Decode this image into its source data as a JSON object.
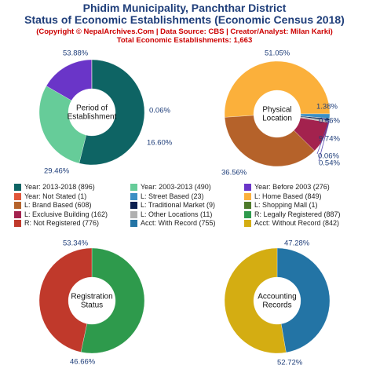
{
  "header": {
    "title_line1": "Phidim Municipality, Panchthar District",
    "title_line2": "Status of Economic Establishments (Economic Census 2018)",
    "copyright": "(Copyright © NepalArchives.Com | Data Source: CBS | Creator/Analyst: Milan Karki)",
    "total": "Total Economic Establishments: 1,663"
  },
  "chart_data": [
    {
      "type": "pie",
      "center_label": [
        "Period of",
        "Establishment"
      ],
      "categories": [
        "Year: 2013-2018",
        "Year: 2003-2013",
        "Year: Before 2003",
        "Year: Not Stated"
      ],
      "values": [
        896,
        490,
        276,
        1
      ],
      "percent_labels": [
        "53.88%",
        "29.46%",
        "16.60%",
        "0.06%"
      ],
      "colors": [
        "#0e6464",
        "#66cc99",
        "#6a35c8",
        "#e0563a"
      ]
    },
    {
      "type": "pie",
      "center_label": [
        "Physical",
        "Location"
      ],
      "categories": [
        "L: Home Based",
        "L: Brand Based",
        "L: Exclusive Building",
        "L: Other Locations",
        "L: Traditional Market",
        "L: Shopping Mall",
        "L: Street Based"
      ],
      "values": [
        849,
        608,
        162,
        11,
        9,
        1,
        23
      ],
      "percent_labels": [
        "51.05%",
        "36.56%",
        "9.74%",
        "0.66%",
        "0.54%",
        "0.06%",
        "1.38%"
      ],
      "colors": [
        "#fbb03b",
        "#b5622a",
        "#a3224e",
        "#b0b0b0",
        "#0b1f4f",
        "#4e7a2a",
        "#3b8fc4"
      ]
    },
    {
      "type": "pie",
      "center_label": [
        "Registration",
        "Status"
      ],
      "categories": [
        "R: Legally Registered",
        "R: Not Registered"
      ],
      "values": [
        887,
        776
      ],
      "percent_labels": [
        "53.34%",
        "46.66%"
      ],
      "colors": [
        "#2e9a4c",
        "#c0392b"
      ]
    },
    {
      "type": "pie",
      "center_label": [
        "Accounting",
        "Records"
      ],
      "categories": [
        "Acct: With Record",
        "Acct: Without Record"
      ],
      "values": [
        755,
        842
      ],
      "percent_labels": [
        "47.28%",
        "52.72%"
      ],
      "colors": [
        "#2374a5",
        "#d4ad12"
      ]
    }
  ],
  "legend": [
    {
      "label": "Year: 2013-2018 (896)",
      "color": "#0e6464"
    },
    {
      "label": "Year: 2003-2013 (490)",
      "color": "#66cc99"
    },
    {
      "label": "Year: Before 2003 (276)",
      "color": "#6a35c8"
    },
    {
      "label": "Year: Not Stated (1)",
      "color": "#e0563a"
    },
    {
      "label": "L: Street Based (23)",
      "color": "#3b8fc4"
    },
    {
      "label": "L: Home Based (849)",
      "color": "#fbb03b"
    },
    {
      "label": "L: Brand Based (608)",
      "color": "#b5622a"
    },
    {
      "label": "L: Traditional Market (9)",
      "color": "#0b1f4f"
    },
    {
      "label": "L: Shopping Mall (1)",
      "color": "#4e7a2a"
    },
    {
      "label": "L: Exclusive Building (162)",
      "color": "#a3224e"
    },
    {
      "label": "L: Other Locations (11)",
      "color": "#b0b0b0"
    },
    {
      "label": "R: Legally Registered (887)",
      "color": "#2e9a4c"
    },
    {
      "label": "R: Not Registered (776)",
      "color": "#c0392b"
    },
    {
      "label": "Acct: With Record (755)",
      "color": "#2374a5"
    },
    {
      "label": "Acct: Without Record (842)",
      "color": "#d4ad12"
    }
  ]
}
